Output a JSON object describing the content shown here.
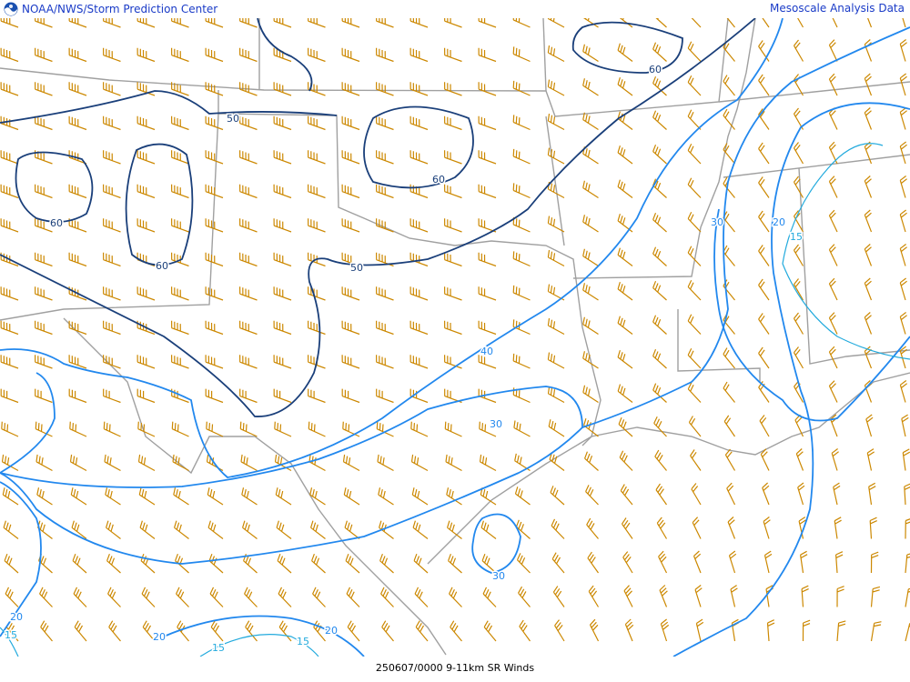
{
  "header": {
    "left_title": "NOAA/NWS/Storm Prediction Center",
    "right_title": "Mesoscale Analysis Data",
    "logo": "noaa-logo"
  },
  "footer": {
    "caption": "250607/0000 9-11km SR Winds"
  },
  "colors": {
    "boundaries": "#a0a0a0",
    "barbs": "#cc8800",
    "contour_dark": "#1a3f7a",
    "contour_mid": "#2288ee",
    "contour_light": "#22aadd",
    "title": "#1a3bc7"
  },
  "contour_labels": [
    {
      "value": "60"
    },
    {
      "value": "50"
    },
    {
      "value": "60"
    },
    {
      "value": "60"
    },
    {
      "value": "60"
    },
    {
      "value": "50"
    },
    {
      "value": "40"
    },
    {
      "value": "30"
    },
    {
      "value": "30"
    },
    {
      "value": "30"
    },
    {
      "value": "20"
    },
    {
      "value": "15"
    },
    {
      "value": "20"
    },
    {
      "value": "15"
    },
    {
      "value": "20"
    },
    {
      "value": "20"
    },
    {
      "value": "15"
    },
    {
      "value": "15"
    }
  ]
}
